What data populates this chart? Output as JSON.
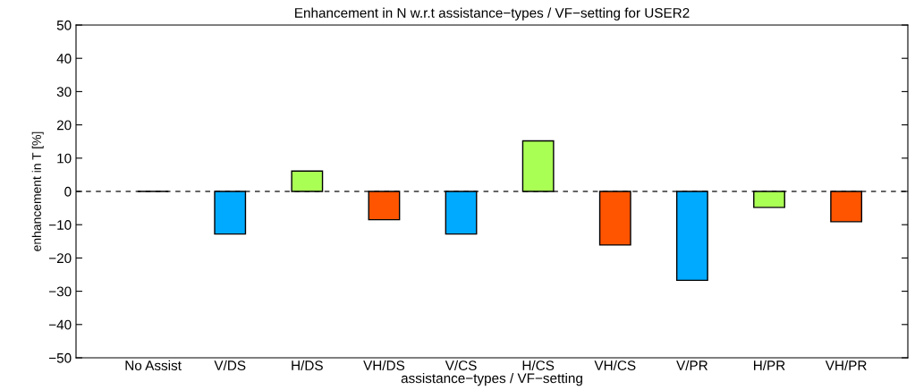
{
  "chart_data": {
    "type": "bar",
    "title": "Enhancement in N w.r.t assistance−types / VF−setting for USER2",
    "xlabel": "assistance−types / VF−setting",
    "ylabel": "enhancement in T [%]",
    "categories": [
      "No Assist",
      "V/DS",
      "H/DS",
      "VH/DS",
      "V/CS",
      "H/CS",
      "VH/CS",
      "V/PR",
      "H/PR",
      "VH/PR"
    ],
    "values": [
      0,
      -12.8,
      6.1,
      -8.5,
      -12.8,
      15.2,
      -16.1,
      -26.7,
      -4.8,
      -9.1
    ],
    "colors": [
      "#000000",
      "#00aaff",
      "#aaff55",
      "#ff5500",
      "#00aaff",
      "#aaff55",
      "#ff5500",
      "#00aaff",
      "#aaff55",
      "#ff5500"
    ],
    "ylim": [
      -50,
      50
    ],
    "yticks": [
      -50,
      -40,
      -30,
      -20,
      -10,
      0,
      10,
      20,
      30,
      40,
      50
    ],
    "ref_lines": [
      {
        "axis": "y",
        "value": 0,
        "color": "#333333",
        "line_style": "dashed"
      }
    ],
    "grid": false,
    "legend": false
  }
}
